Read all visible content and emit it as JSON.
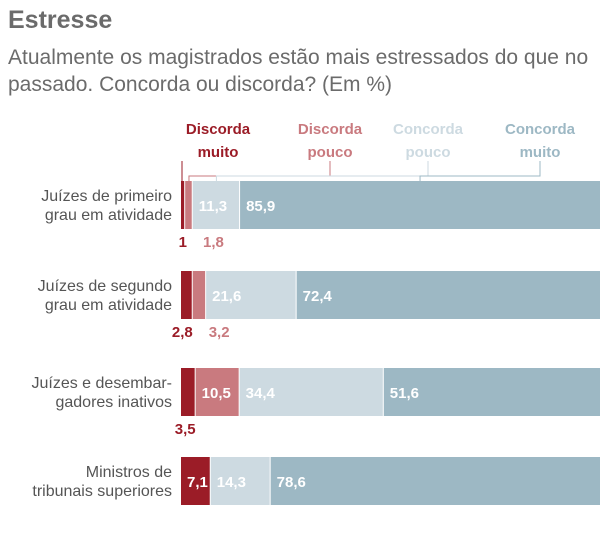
{
  "chart_data": {
    "type": "bar",
    "stacked": true,
    "orientation": "horizontal",
    "title": "Estresse",
    "subtitle": "Atualmente os magistrados estão mais estressados do que no passado. Concorda ou discorda? (Em %)",
    "xlim": [
      0,
      100
    ],
    "legend_position": "top",
    "categories": [
      [
        "Juízes de primeiro",
        "grau em atividade"
      ],
      [
        "Juízes de segundo",
        "grau em atividade"
      ],
      [
        "Juízes e desembar-",
        "gadores inativos"
      ],
      [
        "Ministros de",
        "tribunais superiores"
      ]
    ],
    "series": [
      {
        "name": [
          "Discorda",
          "muito"
        ],
        "color": "#9b1c27",
        "label_color": "#9b1c27",
        "values": [
          1,
          2.8,
          3.5,
          7.1
        ],
        "labels": [
          "1",
          "2,8",
          "3,5",
          "7,1"
        ]
      },
      {
        "name": [
          "Discorda",
          "pouco"
        ],
        "color": "#c97a7f",
        "label_color": "#c97a7f",
        "values": [
          1.8,
          3.2,
          10.5,
          0
        ],
        "labels": [
          "1,8",
          "3,2",
          "10,5",
          ""
        ]
      },
      {
        "name": [
          "Concorda",
          "pouco"
        ],
        "color": "#cddae1",
        "label_color": "#cddae1",
        "values": [
          11.3,
          21.6,
          34.4,
          14.3
        ],
        "labels": [
          "11,3",
          "21,6",
          "34,4",
          "14,3"
        ]
      },
      {
        "name": [
          "Concorda",
          "muito"
        ],
        "color": "#9db8c4",
        "label_color": "#9db8c4",
        "values": [
          85.9,
          72.4,
          51.6,
          78.6
        ],
        "labels": [
          "85,9",
          "72,4",
          "51,6",
          "78,6"
        ]
      }
    ]
  }
}
